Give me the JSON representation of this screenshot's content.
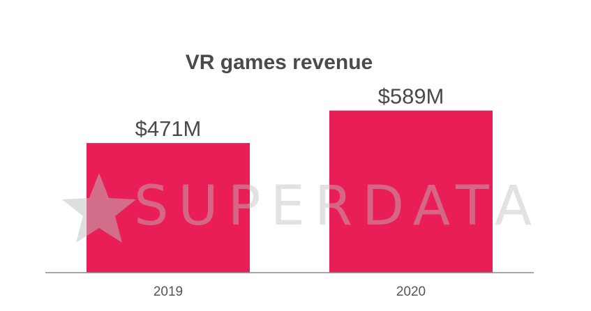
{
  "chart_data": {
    "type": "bar",
    "title": "VR games revenue",
    "categories": [
      "2019",
      "2020"
    ],
    "values": [
      471,
      589
    ],
    "value_labels": [
      "$471M",
      "$589M"
    ],
    "unit": "$M",
    "ylim": [
      0,
      750
    ],
    "bar_color": "#e91e56",
    "axis_color": "#8a8a8a",
    "grid": false,
    "legend": "none"
  },
  "watermark": {
    "text": "SUPERDATA",
    "icon": "star-icon"
  }
}
